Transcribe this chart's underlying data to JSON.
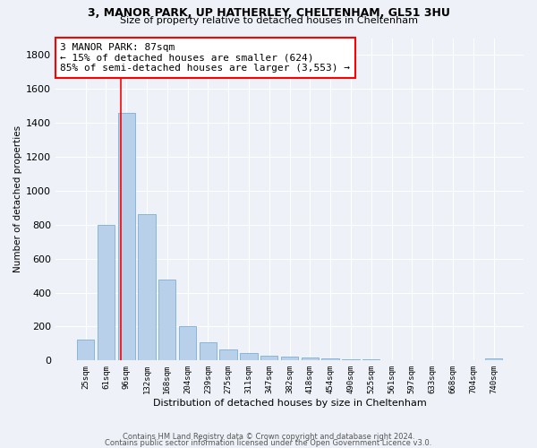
{
  "title1": "3, MANOR PARK, UP HATHERLEY, CHELTENHAM, GL51 3HU",
  "title2": "Size of property relative to detached houses in Cheltenham",
  "xlabel": "Distribution of detached houses by size in Cheltenham",
  "ylabel": "Number of detached properties",
  "categories": [
    "25sqm",
    "61sqm",
    "96sqm",
    "132sqm",
    "168sqm",
    "204sqm",
    "239sqm",
    "275sqm",
    "311sqm",
    "347sqm",
    "382sqm",
    "418sqm",
    "454sqm",
    "490sqm",
    "525sqm",
    "561sqm",
    "597sqm",
    "633sqm",
    "668sqm",
    "704sqm",
    "740sqm"
  ],
  "values": [
    125,
    800,
    1460,
    865,
    475,
    200,
    105,
    65,
    42,
    30,
    22,
    18,
    12,
    8,
    5,
    3,
    2,
    1,
    0,
    0,
    13
  ],
  "bar_color": "#b8d0ea",
  "bar_edge_color": "#7aafd4",
  "vline_x": 1.74,
  "annotation_box_text": "3 MANOR PARK: 87sqm\n← 15% of detached houses are smaller (624)\n85% of semi-detached houses are larger (3,553) →",
  "ylim": [
    0,
    1900
  ],
  "yticks": [
    0,
    200,
    400,
    600,
    800,
    1000,
    1200,
    1400,
    1600,
    1800
  ],
  "footer1": "Contains HM Land Registry data © Crown copyright and database right 2024.",
  "footer2": "Contains public sector information licensed under the Open Government Licence v3.0.",
  "background_color": "#eef2f8"
}
